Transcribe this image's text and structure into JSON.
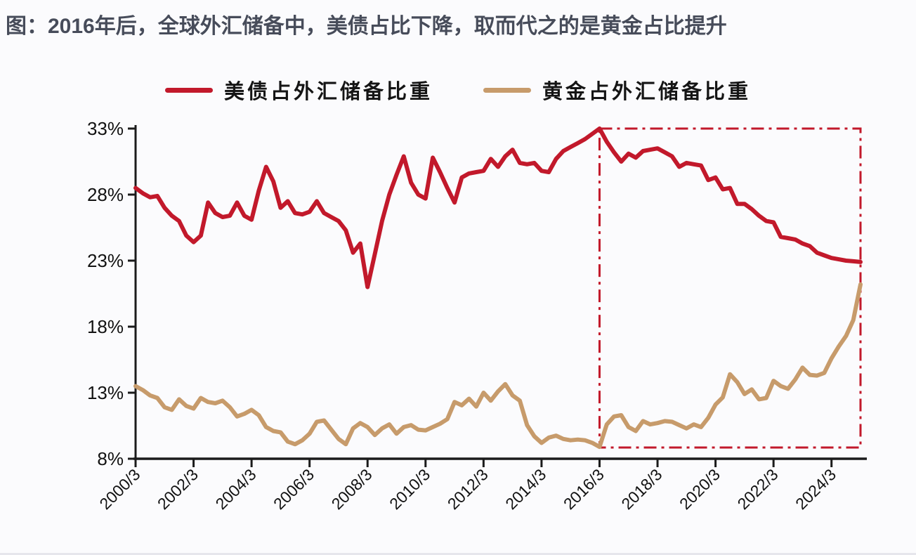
{
  "page": {
    "title": "图：2016年后，全球外汇储备中，美债占比下降，取而代之的是黄金占比提升"
  },
  "legend": [
    {
      "label": "美债占外汇储备比重",
      "color": "#C2192B"
    },
    {
      "label": "黄金占外汇储备比重",
      "color": "#C79B6B"
    }
  ],
  "colors": {
    "us_debt_line": "#C2192B",
    "gold_line": "#C79B6B",
    "axis": "#1b1b1b",
    "tick_text": "#121212",
    "title_text": "#474c5a",
    "highlight_box": "#C2192B",
    "background": "#fbfbfd"
  },
  "chart_data": {
    "type": "line",
    "title": "图：2016年后，全球外汇储备中，美债占比下降，取而代之的是黄金占比提升",
    "x_start": "2000/3",
    "x_frequency": "quarterly",
    "x_tick_labels": [
      "2000/3",
      "2002/3",
      "2004/3",
      "2006/3",
      "2008/3",
      "2010/3",
      "2012/3",
      "2014/3",
      "2016/3",
      "2018/3",
      "2020/3",
      "2022/3",
      "2024/3"
    ],
    "y_tick_labels": [
      "33%",
      "28%",
      "23%",
      "18%",
      "13%",
      "8%"
    ],
    "y_tick_values": [
      33,
      28,
      23,
      18,
      13,
      8
    ],
    "ylim": [
      8,
      33
    ],
    "grid": false,
    "legend_position": "top-center",
    "series": [
      {
        "name": "美债占外汇储备比重",
        "color": "#C2192B",
        "values": [
          28.5,
          28.1,
          27.8,
          27.9,
          27.0,
          26.4,
          26.0,
          24.9,
          24.4,
          24.9,
          27.4,
          26.6,
          26.3,
          26.4,
          27.4,
          26.4,
          26.1,
          28.3,
          30.1,
          29.0,
          27.0,
          27.5,
          26.6,
          26.5,
          26.7,
          27.5,
          26.6,
          26.3,
          26.0,
          25.3,
          23.6,
          24.3,
          21.0,
          23.5,
          26.0,
          28.0,
          29.5,
          30.9,
          28.9,
          28.0,
          27.7,
          30.8,
          29.7,
          28.5,
          27.4,
          29.3,
          29.6,
          29.7,
          29.8,
          30.7,
          30.1,
          30.9,
          31.4,
          30.4,
          30.3,
          30.4,
          29.8,
          29.7,
          30.7,
          31.3,
          31.6,
          31.9,
          32.2,
          32.6,
          33.0,
          32.0,
          31.2,
          30.5,
          31.1,
          30.8,
          31.3,
          31.4,
          31.5,
          31.2,
          30.9,
          30.1,
          30.4,
          30.3,
          30.2,
          29.1,
          29.3,
          28.4,
          28.5,
          27.3,
          27.3,
          26.9,
          26.4,
          26.0,
          25.9,
          24.8,
          24.7,
          24.6,
          24.3,
          24.1,
          23.6,
          23.4,
          23.2,
          23.1,
          23.0,
          22.95,
          22.9
        ]
      },
      {
        "name": "黄金占外汇储备比重",
        "color": "#C79B6B",
        "values": [
          13.5,
          13.2,
          12.8,
          12.6,
          11.9,
          11.7,
          12.5,
          12.0,
          11.8,
          12.6,
          12.3,
          12.2,
          12.4,
          11.9,
          11.2,
          11.4,
          11.7,
          11.3,
          10.4,
          10.1,
          10.0,
          9.3,
          9.1,
          9.4,
          9.9,
          10.8,
          10.9,
          10.2,
          9.5,
          9.1,
          10.3,
          10.7,
          10.4,
          9.8,
          10.3,
          10.6,
          9.9,
          10.4,
          10.55,
          10.2,
          10.15,
          10.4,
          10.65,
          11.0,
          12.3,
          12.05,
          12.55,
          11.95,
          13.0,
          12.4,
          13.1,
          13.65,
          12.8,
          12.4,
          10.55,
          9.7,
          9.2,
          9.6,
          9.75,
          9.5,
          9.4,
          9.45,
          9.4,
          9.2,
          8.9,
          10.6,
          11.2,
          11.3,
          10.4,
          10.1,
          10.85,
          10.6,
          10.7,
          10.85,
          10.8,
          10.55,
          10.3,
          10.6,
          10.4,
          11.1,
          12.1,
          12.65,
          14.4,
          13.8,
          12.9,
          13.25,
          12.5,
          12.6,
          13.9,
          13.5,
          13.3,
          14.0,
          14.9,
          14.35,
          14.3,
          14.5,
          15.6,
          16.5,
          17.3,
          18.5,
          21.2
        ]
      }
    ],
    "highlight_box": {
      "start": "2016/3",
      "start_index": 64,
      "end_index": 100,
      "top_pct": 33.0,
      "bottom_pct": 8.85,
      "color": "#C2192B",
      "style": "dash-dot"
    }
  }
}
